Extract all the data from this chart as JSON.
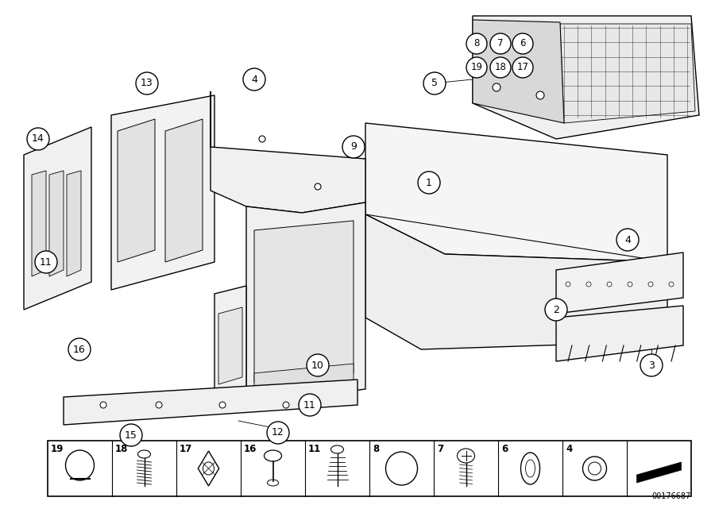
{
  "background_color": "#ffffff",
  "watermark": "00176687",
  "label_fontsize": 9,
  "strip_fontsize": 8.5
}
